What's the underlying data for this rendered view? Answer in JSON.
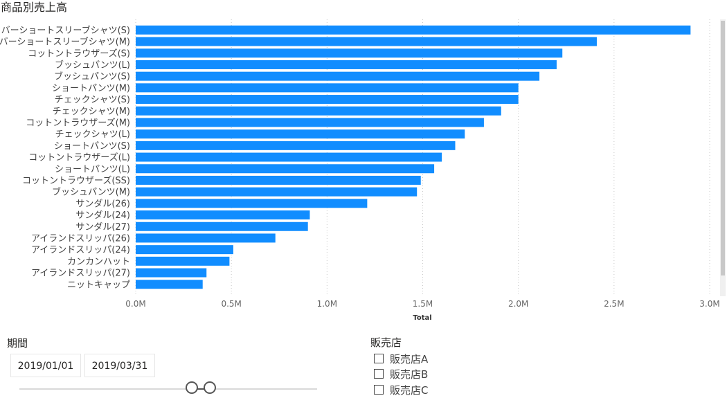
{
  "chart_data": {
    "type": "bar",
    "orientation": "horizontal",
    "title": "商品別売上高",
    "xlabel": "Total",
    "ylabel": "",
    "xlim": [
      0,
      3000000
    ],
    "ticks": [
      "0.0M",
      "0.5M",
      "1.0M",
      "1.5M",
      "2.0M",
      "2.5M",
      "3.0M"
    ],
    "grid": true,
    "bar_color": "#118DFF",
    "categories": [
      "バーショートスリーブシャツ(S)",
      "バーショートスリーブシャツ(M)",
      "コットントラウザーズ(S)",
      "ブッシュパンツ(L)",
      "ブッシュパンツ(S)",
      "ショートパンツ(M)",
      "チェックシャツ(S)",
      "チェックシャツ(M)",
      "コットントラウザーズ(M)",
      "チェックシャツ(L)",
      "ショートパンツ(S)",
      "コットントラウザーズ(L)",
      "ショートパンツ(L)",
      "コットントラウザーズ(SS)",
      "ブッシュパンツ(M)",
      "サンダル(26)",
      "サンダル(24)",
      "サンダル(27)",
      "アイランドスリッパ(26)",
      "アイランドスリッパ(24)",
      "カンカンハット",
      "アイランドスリッパ(27)",
      "ニットキャップ"
    ],
    "values": [
      2900000,
      2410000,
      2230000,
      2200000,
      2110000,
      2000000,
      2000000,
      1910000,
      1820000,
      1720000,
      1670000,
      1600000,
      1560000,
      1490000,
      1470000,
      1210000,
      910000,
      900000,
      730000,
      510000,
      490000,
      370000,
      350000
    ]
  },
  "period_filter": {
    "label": "期間",
    "start": "2019/01/01",
    "end": "2019/03/31",
    "range_start_fraction": 0.58,
    "range_end_fraction": 0.64
  },
  "store_filter": {
    "label": "販売店",
    "options": [
      {
        "label": "販売店A",
        "checked": false
      },
      {
        "label": "販売店B",
        "checked": false
      },
      {
        "label": "販売店C",
        "checked": false
      }
    ]
  }
}
